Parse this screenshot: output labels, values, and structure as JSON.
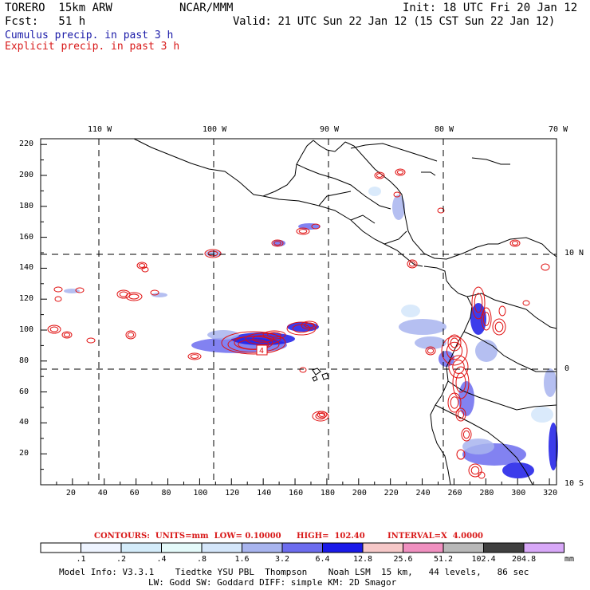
{
  "header": {
    "model": "TORERO  15km ARW",
    "org": "NCAR/MMM",
    "init": "Init: 18 UTC Fri 20 Jan 12",
    "fcst": "Fcst:   51 h",
    "valid": "Valid: 21 UTC Sun 22 Jan 12 (15 CST Sun 22 Jan 12)",
    "line1": "Cumulus precip. in past 3 h",
    "line2": "Explicit precip. in past 3 h"
  },
  "colors": {
    "cumulus_text": "#1a1aa8",
    "explicit_text": "#d81818",
    "contour": "#e01010",
    "coast": "#000000"
  },
  "map": {
    "lon_labels": [
      "110 W",
      "100 W",
      "90 W",
      "80 W",
      "70 W"
    ],
    "lat_labels": [
      "10 N",
      "0",
      "10 S"
    ],
    "x_ticks": [
      "20",
      "40",
      "60",
      "80",
      "100",
      "120",
      "140",
      "160",
      "180",
      "200",
      "220",
      "240",
      "260",
      "280",
      "300",
      "320"
    ],
    "y_ticks": [
      "220",
      "200",
      "180",
      "160",
      "140",
      "120",
      "100",
      "80",
      "60",
      "40",
      "20"
    ],
    "contour_label": "4"
  },
  "contours": {
    "label": "CONTOURS:  UNITS=mm  LOW= 0.10000",
    "high": "HIGH=  102.40",
    "interval": "INTERVAL=X  4.0000"
  },
  "colorbar": {
    "labels": [
      ".1",
      ".2",
      ".4",
      ".8",
      "1.6",
      "3.2",
      "6.4",
      "12.8",
      "25.6",
      "51.2",
      "102.4",
      "204.8"
    ],
    "units": "mm",
    "colors": [
      "#ffffff",
      "#eef4ff",
      "#d4ecfa",
      "#e4fafa",
      "#d4e6fa",
      "#a8b4ee",
      "#6c6cee",
      "#1a1ae8",
      "#f6c8c8",
      "#f090c0",
      "#b8b8b8",
      "#404040",
      "#d8a8f8"
    ]
  },
  "footer": {
    "line1": "Model Info: V3.3.1    Tiedtke YSU PBL  Thompson    Noah LSM  15 km,   44 levels,   86 sec",
    "line2": "LW: Godd SW: Goddard DIFF: simple KM: 2D Smagor"
  }
}
